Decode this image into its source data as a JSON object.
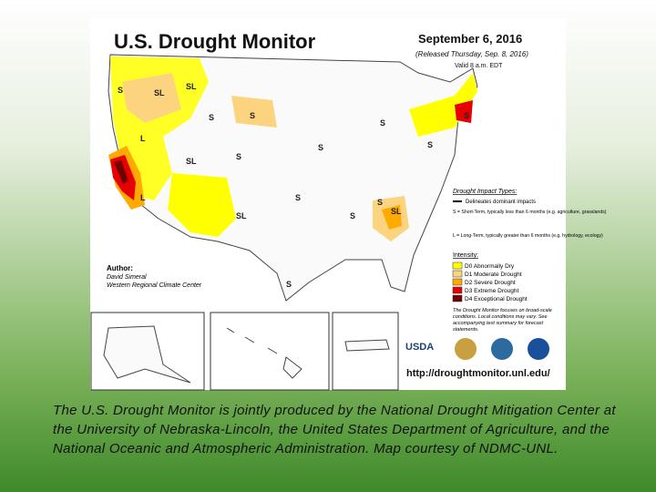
{
  "map": {
    "title": "U.S. Drought Monitor",
    "date": "September 6, 2016",
    "released": "(Released Thursday, Sep. 8, 2016)",
    "valid": "Valid 8 a.m. EDT",
    "region_labels": [
      "S",
      "SL",
      "SL",
      "S",
      "L",
      "S",
      "S",
      "S",
      "SL",
      "L",
      "SL",
      "S",
      "S",
      "S",
      "SL",
      "S",
      "S",
      "S",
      "S"
    ],
    "legend": {
      "impact_title": "Drought Impact Types:",
      "delineates": "Delineates dominant impacts",
      "short_term": "S = Short-Term, typically less than 6 months (e.g. agriculture, grasslands)",
      "long_term": "L = Long-Term, typically greater than 6 months (e.g. hydrology, ecology)",
      "intensity_title": "Intensity:",
      "intensity": [
        {
          "label": "D0 Abnormally Dry",
          "color": "#ffff00"
        },
        {
          "label": "D1 Moderate Drought",
          "color": "#fcd37f"
        },
        {
          "label": "D2 Severe Drought",
          "color": "#ffaa00"
        },
        {
          "label": "D3 Extreme Drought",
          "color": "#e60000"
        },
        {
          "label": "D4 Exceptional Drought",
          "color": "#730000"
        }
      ]
    },
    "note": "The Drought Monitor focuses on broad-scale conditions. Local conditions may vary. See accompanying text summary for forecast statements.",
    "author_label": "Author:",
    "author": "David Simeral",
    "author_org": "Western Regional Climate Center",
    "logo": "USDA",
    "url": "http://droughtmonitor.unl.edu/"
  },
  "caption": "The U.S. Drought Monitor is jointly produced by the National Drought Mitigation Center at the University of Nebraska-Lincoln, the United States Department of Agriculture, and the National Oceanic and Atmospheric Administration. Map courtesy of NDMC-UNL."
}
